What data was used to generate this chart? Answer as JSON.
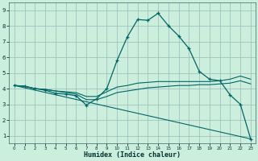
{
  "xlabel": "Humidex (Indice chaleur)",
  "background_color": "#cceedd",
  "grid_color": "#99bbbb",
  "line_color": "#006666",
  "xlim": [
    -0.5,
    23.5
  ],
  "ylim": [
    0.5,
    9.5
  ],
  "xticks": [
    0,
    1,
    2,
    3,
    4,
    5,
    6,
    7,
    8,
    9,
    10,
    11,
    12,
    13,
    14,
    15,
    16,
    17,
    18,
    19,
    20,
    21,
    22,
    23
  ],
  "yticks": [
    1,
    2,
    3,
    4,
    5,
    6,
    7,
    8,
    9
  ],
  "series1_x": [
    0,
    1,
    2,
    3,
    4,
    5,
    6,
    7,
    8,
    9,
    10,
    11,
    12,
    13,
    14,
    15,
    16,
    17,
    18,
    19,
    20,
    21,
    22,
    23
  ],
  "series1_y": [
    4.2,
    4.15,
    4.0,
    3.9,
    3.7,
    3.65,
    3.55,
    2.95,
    3.35,
    4.0,
    5.8,
    7.3,
    8.4,
    8.35,
    8.8,
    8.0,
    7.35,
    6.55,
    5.1,
    4.6,
    4.5,
    3.6,
    3.0,
    0.8
  ],
  "series2_x": [
    0,
    1,
    2,
    3,
    4,
    5,
    6,
    7,
    8,
    9,
    10,
    11,
    12,
    13,
    14,
    15,
    16,
    17,
    18,
    19,
    20,
    21,
    22,
    23
  ],
  "series2_y": [
    4.2,
    4.15,
    4.0,
    3.95,
    3.85,
    3.8,
    3.75,
    3.5,
    3.5,
    3.8,
    4.1,
    4.2,
    4.35,
    4.4,
    4.45,
    4.45,
    4.45,
    4.45,
    4.45,
    4.45,
    4.5,
    4.6,
    4.8,
    4.6
  ],
  "series3_x": [
    0,
    1,
    2,
    3,
    4,
    5,
    6,
    7,
    8,
    9,
    10,
    11,
    12,
    13,
    14,
    15,
    16,
    17,
    18,
    19,
    20,
    21,
    22,
    23
  ],
  "series3_y": [
    4.2,
    4.15,
    4.0,
    3.95,
    3.85,
    3.75,
    3.65,
    3.3,
    3.3,
    3.5,
    3.75,
    3.85,
    3.95,
    4.05,
    4.1,
    4.15,
    4.2,
    4.2,
    4.25,
    4.25,
    4.3,
    4.35,
    4.5,
    4.3
  ],
  "series4_x": [
    0,
    23
  ],
  "series4_y": [
    4.2,
    0.8
  ]
}
